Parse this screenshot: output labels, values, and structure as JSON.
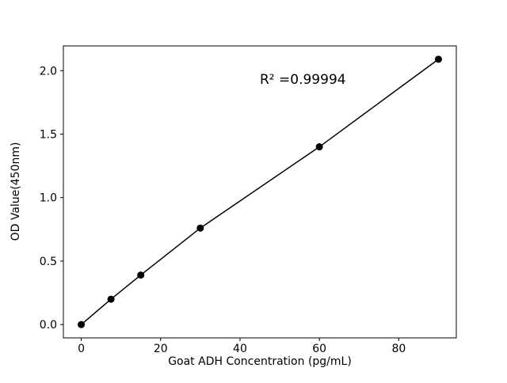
{
  "chart_data": {
    "type": "scatter",
    "title": "",
    "xlabel": "Goat ADH Concentration (pg/mL)",
    "ylabel": "OD Value(450nm)",
    "annotation": "R² =0.99994",
    "x": [
      0,
      7.5,
      15,
      30,
      60,
      90
    ],
    "y": [
      0.0,
      0.2,
      0.39,
      0.76,
      1.4,
      2.09
    ],
    "xticks": [
      0,
      20,
      40,
      60,
      80
    ],
    "xtick_labels": [
      "0",
      "20",
      "40",
      "60",
      "80"
    ],
    "yticks": [
      0.0,
      0.5,
      1.0,
      1.5,
      2.0
    ],
    "ytick_labels": [
      "0.0",
      "0.5",
      "1.0",
      "1.5",
      "2.0"
    ],
    "xlim": [
      -4.5,
      94.5
    ],
    "ylim": [
      -0.105,
      2.195
    ],
    "grid": false,
    "legend_position": "none",
    "line_color": "#000000",
    "marker_color": "#000000",
    "background_color": "#ffffff",
    "marker_style": "circle",
    "annotation_position": {
      "x": 45,
      "y": 1.93
    }
  }
}
